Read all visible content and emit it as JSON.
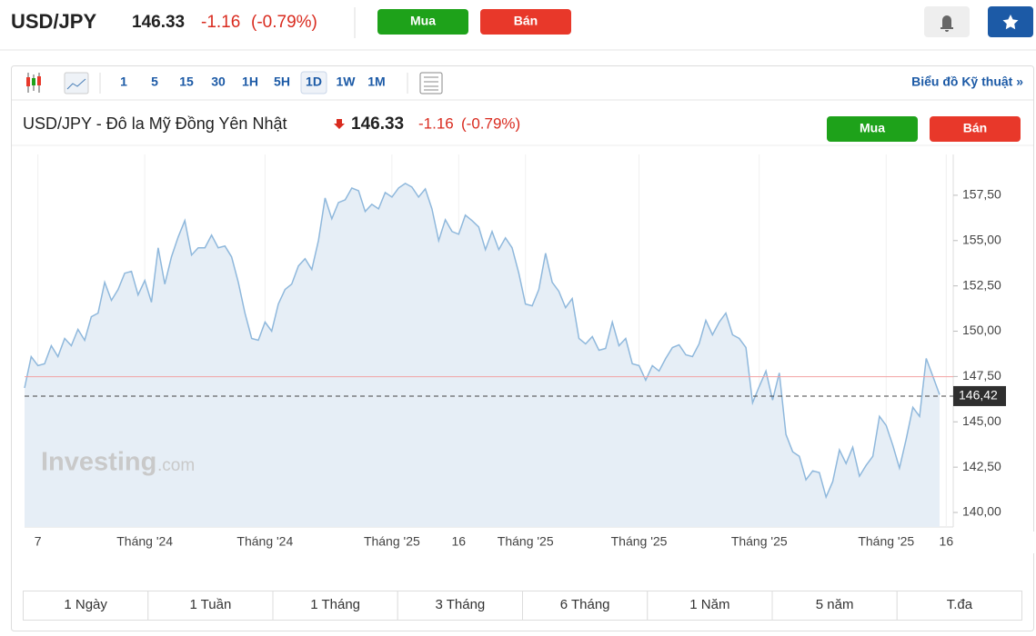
{
  "header": {
    "symbol": "USD/JPY",
    "price": "146.33",
    "change": "-1.16",
    "change_pct": "(-0.79%)",
    "buy": "Mua",
    "sell": "Bán"
  },
  "toolbar": {
    "intervals": [
      "1",
      "5",
      "15",
      "30",
      "1H",
      "5H",
      "1D",
      "1W",
      "1M"
    ],
    "selected_interval": "1D",
    "technical_link": "Biểu đồ Kỹ thuật »"
  },
  "chart_header": {
    "title": "USD/JPY - Đô la Mỹ Đồng Yên Nhật"
  },
  "chart_data": {
    "type": "line",
    "color": "#8fb8dc",
    "fill": "#e6eef6",
    "grid": "x",
    "categories": [
      null,
      null,
      "7",
      null,
      null,
      null,
      null,
      null,
      null,
      null,
      null,
      null,
      null,
      null,
      null,
      null,
      null,
      null,
      "Tháng '24",
      null,
      null,
      null,
      null,
      null,
      null,
      null,
      null,
      null,
      null,
      null,
      null,
      null,
      null,
      null,
      null,
      null,
      "Tháng '24",
      null,
      null,
      null,
      null,
      null,
      null,
      null,
      null,
      null,
      null,
      null,
      null,
      null,
      null,
      null,
      null,
      null,
      null,
      "Tháng '25",
      null,
      null,
      null,
      null,
      null,
      null,
      null,
      null,
      null,
      "16",
      null,
      null,
      null,
      null,
      null,
      null,
      null,
      null,
      null,
      "Tháng '25",
      null,
      null,
      null,
      null,
      null,
      null,
      null,
      null,
      null,
      null,
      null,
      null,
      null,
      null,
      null,
      null,
      "Tháng '25",
      null,
      null,
      null,
      null,
      null,
      null,
      null,
      null,
      null,
      null,
      null,
      null,
      null,
      null,
      null,
      null,
      null,
      "Tháng '25",
      null,
      null,
      null,
      null,
      null,
      null,
      null,
      null,
      null,
      null,
      null,
      null,
      null,
      null,
      null,
      null,
      null,
      null,
      "Tháng '25",
      null,
      null,
      null,
      null,
      null,
      null,
      null,
      null,
      "16"
    ],
    "values": [
      146.87,
      148.6,
      148.1,
      148.2,
      149.2,
      148.6,
      149.6,
      149.2,
      150.1,
      149.5,
      150.8,
      151.0,
      152.7,
      151.7,
      152.3,
      153.2,
      153.3,
      152.0,
      152.8,
      151.6,
      154.6,
      152.6,
      154.1,
      155.2,
      156.1,
      154.2,
      154.6,
      154.6,
      155.3,
      154.6,
      154.7,
      154.1,
      152.7,
      151.0,
      149.6,
      149.5,
      150.5,
      150.0,
      151.5,
      152.3,
      152.6,
      153.6,
      154.0,
      153.4,
      155.0,
      157.35,
      156.2,
      157.1,
      157.25,
      157.9,
      157.75,
      156.6,
      157.0,
      156.75,
      157.65,
      157.4,
      157.9,
      158.15,
      157.95,
      157.4,
      157.85,
      156.75,
      155.0,
      156.15,
      155.5,
      155.35,
      156.4,
      156.1,
      155.75,
      154.5,
      155.5,
      154.5,
      155.15,
      154.6,
      153.2,
      151.5,
      151.4,
      152.3,
      154.3,
      152.7,
      152.2,
      151.3,
      151.8,
      149.6,
      149.3,
      149.7,
      148.95,
      149.05,
      150.5,
      149.2,
      149.6,
      148.2,
      148.1,
      147.3,
      148.1,
      147.8,
      148.5,
      149.1,
      149.25,
      148.7,
      148.6,
      149.3,
      150.6,
      149.8,
      150.5,
      151.0,
      149.8,
      149.6,
      149.1,
      146.05,
      146.95,
      147.8,
      146.2,
      147.7,
      144.3,
      143.35,
      143.1,
      141.8,
      142.3,
      142.2,
      140.85,
      141.7,
      143.45,
      142.7,
      143.6,
      142.0,
      142.6,
      143.1,
      145.3,
      144.8,
      143.7,
      142.45,
      144.05,
      145.8,
      145.3,
      148.5,
      147.5,
      146.5,
      null
    ],
    "ylim": [
      139.2,
      159.75
    ],
    "yticks": [
      {
        "value": 140,
        "label": "140,00"
      },
      {
        "value": 142.5,
        "label": "142,50"
      },
      {
        "value": 145,
        "label": "145,00"
      },
      {
        "value": 147.5,
        "label": "147,50"
      },
      {
        "value": 150,
        "label": "150,00"
      },
      {
        "value": 152.5,
        "label": "152,50"
      },
      {
        "value": 155,
        "label": "155,00"
      },
      {
        "value": 157.5,
        "label": "157,50"
      }
    ],
    "last_price": {
      "value": 146.42,
      "label": "146,42"
    },
    "reference_line": 147.49
  },
  "watermark": {
    "brand": "Investing",
    "suffix": ".com"
  },
  "ranges": [
    "1 Ngày",
    "1 Tuần",
    "1 Tháng",
    "3 Tháng",
    "6 Tháng",
    "1 Năm",
    "5 năm",
    "T.đa"
  ]
}
